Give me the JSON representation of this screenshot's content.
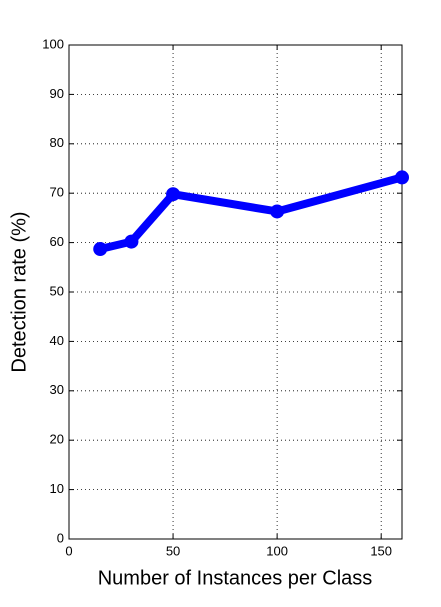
{
  "chart_data": {
    "type": "line",
    "x_label": "Number of Instances per Class",
    "y_label": "Detection rate (%)",
    "x": [
      15,
      30,
      50,
      100,
      160
    ],
    "series": [
      {
        "color": "#0000ff",
        "values": [
          58.7,
          60.2,
          69.8,
          66.3,
          73.2
        ]
      }
    ],
    "xlim": [
      0,
      160
    ],
    "xticks": [
      0,
      50,
      100,
      150
    ],
    "ylim": [
      0,
      100
    ],
    "yticks": [
      0,
      10,
      20,
      30,
      40,
      50,
      60,
      70,
      80,
      90,
      100
    ],
    "grid": true
  }
}
